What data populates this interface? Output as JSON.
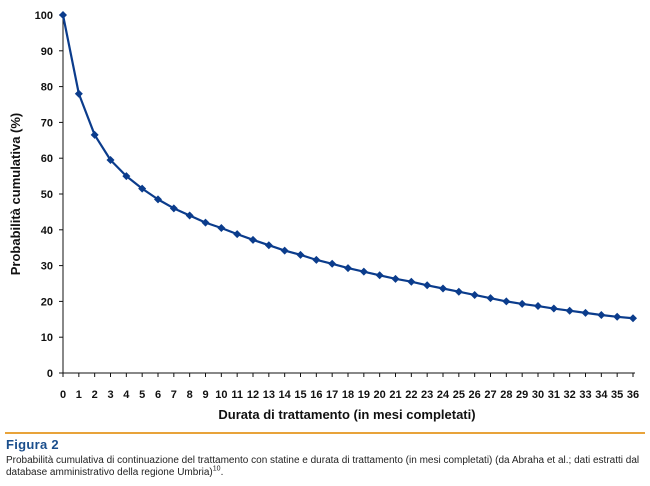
{
  "chart_data": {
    "type": "line",
    "xlabel": "Durata di trattamento (in mesi completati)",
    "ylabel": "Probabilità cumulativa (%)",
    "ylim": [
      0,
      100
    ],
    "xlim": [
      0,
      36
    ],
    "y_ticks": [
      0,
      10,
      20,
      30,
      40,
      50,
      60,
      70,
      80,
      90,
      100
    ],
    "x": [
      0,
      1,
      2,
      3,
      4,
      5,
      6,
      7,
      8,
      9,
      10,
      11,
      12,
      13,
      14,
      15,
      16,
      17,
      18,
      19,
      20,
      21,
      22,
      23,
      24,
      25,
      26,
      27,
      28,
      29,
      30,
      31,
      32,
      33,
      34,
      35,
      36
    ],
    "series": [
      {
        "values": [
          100,
          78,
          66.5,
          59.5,
          55,
          51.5,
          48.5,
          46,
          44,
          42,
          40.5,
          38.8,
          37.2,
          35.7,
          34.2,
          33,
          31.6,
          30.5,
          29.3,
          28.3,
          27.3,
          26.3,
          25.5,
          24.5,
          23.6,
          22.7,
          21.8,
          20.9,
          20,
          19.3,
          18.7,
          18,
          17.4,
          16.8,
          16.2,
          15.7,
          15.3
        ],
        "color": "#0b3c8c"
      }
    ],
    "grid": false,
    "legend": "none"
  },
  "figure": {
    "label": "Figura 2",
    "caption_line1": "Probabilità cumulativa di continuazione del trattamento con statine e durata di trattamento (in mesi completati) (da Abraha et al.; dati estratti dal",
    "caption_line2": "database amministrativo della regione Umbria)",
    "caption_ref": "10",
    "caption_end": "."
  },
  "colors": {
    "accent": "#e8a33a",
    "figure_label": "#1a4e8c",
    "series": "#0b3c8c"
  }
}
